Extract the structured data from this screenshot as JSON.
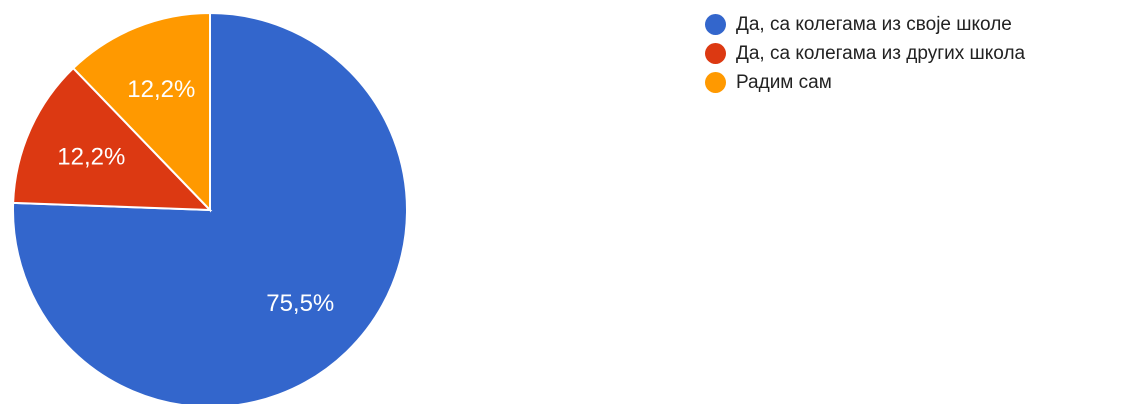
{
  "chart_data": {
    "type": "pie",
    "title": "",
    "start_angle_deg": 0,
    "direction": "clockwise",
    "legend_position": "right",
    "slices": [
      {
        "label": "Да, са колегама из своје школе",
        "value": 75.5,
        "display": "75,5%",
        "color": "#3366cc"
      },
      {
        "label": "Да, са колегама из других школа",
        "value": 12.2,
        "display": "12,2%",
        "color": "#dc3912"
      },
      {
        "label": "Радим сам",
        "value": 12.2,
        "display": "12,2%",
        "color": "#ff9900"
      }
    ]
  }
}
